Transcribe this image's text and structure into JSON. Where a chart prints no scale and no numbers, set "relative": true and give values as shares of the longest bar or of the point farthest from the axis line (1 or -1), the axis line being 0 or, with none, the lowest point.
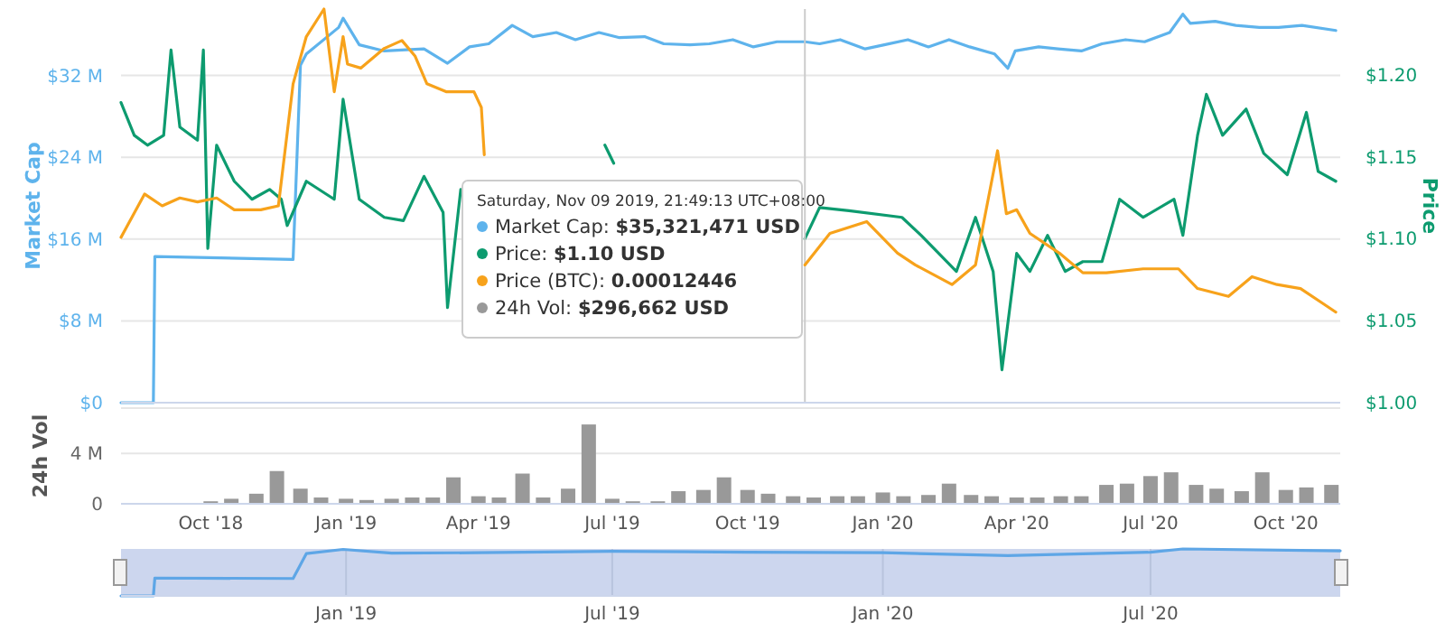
{
  "chart_data": [
    {
      "type": "line",
      "ylabel": "Market Cap",
      "y2label": "Price",
      "xlim": [
        "2018-08-01",
        "2020-11-07"
      ],
      "ylim": [
        0,
        38.5
      ],
      "yticks": [
        {
          "value": 0,
          "label": "$0"
        },
        {
          "value": 8,
          "label": "$8 M"
        },
        {
          "value": 16,
          "label": "$16 M"
        },
        {
          "value": 24,
          "label": "$24 M"
        },
        {
          "value": 32,
          "label": "$32 M"
        }
      ],
      "y2lim": [
        1,
        1.24
      ],
      "y2ticks": [
        {
          "value": 1,
          "label": "$1.00"
        },
        {
          "value": 1.05,
          "label": "$1.05"
        },
        {
          "value": 1.1,
          "label": "$1.10"
        },
        {
          "value": 1.15,
          "label": "$1.15"
        },
        {
          "value": 1.2,
          "label": "$1.20"
        }
      ],
      "grid": "y",
      "tick_labels": "y",
      "ref_lines": [
        {
          "axis": "x",
          "value": "2019-11-09",
          "color": "#cccccc"
        }
      ],
      "annotations": [
        "Saturday, Nov 09 2019, 21:49:13 UTC+08:00",
        "Market Cap: $35,321,471 USD",
        "Price: $1.10 USD",
        "Price (BTC): 0.00012446",
        "24h Vol: $296,662 USD"
      ],
      "series": [
        {
          "color": "#5eb3ec",
          "x": [
            "2018-08-01",
            "2018-08-23",
            "2018-08-24",
            "2018-11-26",
            "2018-12-01",
            "2018-12-05",
            "2018-12-27",
            "2018-12-30",
            "2019-01-10",
            "2019-01-27",
            "2019-02-23",
            "2019-03-11",
            "2019-03-26",
            "2019-04-08",
            "2019-04-24",
            "2019-05-08",
            "2019-05-24",
            "2019-06-06",
            "2019-06-22",
            "2019-07-06",
            "2019-07-23",
            "2019-08-05",
            "2019-08-23",
            "2019-09-05",
            "2019-09-21",
            "2019-10-05",
            "2019-10-21",
            "2019-11-09",
            "2019-11-19",
            "2019-12-03",
            "2019-12-20",
            "2020-01-02",
            "2020-01-18",
            "2020-02-01",
            "2020-02-15",
            "2020-02-29",
            "2020-03-17",
            "2020-03-26",
            "2020-03-31",
            "2020-04-16",
            "2020-04-29",
            "2020-05-15",
            "2020-05-29",
            "2020-06-14",
            "2020-06-27",
            "2020-07-14",
            "2020-07-23",
            "2020-07-28",
            "2020-08-14",
            "2020-08-28",
            "2020-09-13",
            "2020-09-26",
            "2020-10-12",
            "2020-11-04"
          ],
          "values": [
            0,
            0,
            14.3,
            14.0,
            33.0,
            34.1,
            36.7,
            37.6,
            35.0,
            34.4,
            34.6,
            33.2,
            34.8,
            35.1,
            36.9,
            35.8,
            36.2,
            35.5,
            36.2,
            35.7,
            35.8,
            35.1,
            35.0,
            35.1,
            35.5,
            34.8,
            35.3,
            35.3,
            35.1,
            35.5,
            34.6,
            35.0,
            35.5,
            34.8,
            35.5,
            34.8,
            34.1,
            32.7,
            34.4,
            34.8,
            34.6,
            34.4,
            35.1,
            35.5,
            35.3,
            36.2,
            38.0,
            37.1,
            37.3,
            36.9,
            36.7,
            36.7,
            36.9,
            36.4
          ]
        },
        {
          "color": "#0d9b6f",
          "axis": "y2",
          "x": [
            "2018-08-01",
            "2018-08-10",
            "2018-08-19",
            "2018-08-30",
            "2018-09-04",
            "2018-09-10",
            "2018-09-22",
            "2018-09-26",
            "2018-09-29",
            "2018-10-05",
            "2018-10-17",
            "2018-10-29",
            "2018-11-10",
            "2018-11-18",
            "2018-11-22",
            "2018-12-05",
            "2018-12-24",
            "2018-12-30",
            "2019-01-10",
            "2019-01-27",
            "2019-02-09",
            "2019-02-23",
            "2019-03-08",
            "2019-03-11",
            "2019-03-20",
            "2019-04-08",
            "2019-04-23",
            "2019-04-24",
            "2019-05-08",
            "2019-05-24",
            "2019-06-06",
            "2019-06-26",
            "2019-07-02",
            "2019-07-27",
            "2019-08-20",
            "2019-09-14",
            "2019-10-08",
            "2019-11-09",
            "2019-11-19",
            "2019-12-09",
            "2020-01-14",
            "2020-01-27",
            "2020-02-20",
            "2020-03-04",
            "2020-03-16",
            "2020-03-22",
            "2020-04-01",
            "2020-04-10",
            "2020-04-22",
            "2020-05-04",
            "2020-05-16",
            "2020-05-29",
            "2020-06-10",
            "2020-06-26",
            "2020-07-17",
            "2020-07-23",
            "2020-08-02",
            "2020-08-08",
            "2020-08-19",
            "2020-09-04",
            "2020-09-16",
            "2020-10-02",
            "2020-10-15",
            "2020-10-23",
            "2020-11-04"
          ],
          "values": [
            1.183,
            1.163,
            1.157,
            1.163,
            1.215,
            1.168,
            1.16,
            1.215,
            1.094,
            1.157,
            1.135,
            1.124,
            1.13,
            1.124,
            1.108,
            1.135,
            1.124,
            1.185,
            1.124,
            1.113,
            1.111,
            1.138,
            1.116,
            1.058,
            1.13,
            null,
            null,
            null,
            null,
            null,
            null,
            1.157,
            1.146,
            null,
            null,
            null,
            null,
            1.1,
            1.119,
            1.117,
            1.113,
            1.102,
            1.08,
            1.113,
            1.08,
            1.02,
            1.091,
            1.08,
            1.102,
            1.08,
            1.086,
            1.086,
            1.124,
            1.113,
            1.124,
            1.102,
            1.163,
            1.188,
            1.163,
            1.179,
            1.152,
            1.139,
            1.177,
            1.141,
            1.135
          ]
        }
      ]
    },
    {
      "type": "line",
      "relative": true,
      "tick_labels": false,
      "xlim": [
        "2018-08-01",
        "2020-11-07"
      ],
      "series": [
        {
          "color": "#f7a21b",
          "x": [
            "2018-08-01",
            "2018-08-17",
            "2018-08-29",
            "2018-09-10",
            "2018-09-22",
            "2018-10-05",
            "2018-10-17",
            "2018-11-04",
            "2018-11-16",
            "2018-11-26",
            "2018-12-05",
            "2018-12-17",
            "2018-12-24",
            "2018-12-30",
            "2019-01-02",
            "2019-01-11",
            "2019-01-27",
            "2019-02-08",
            "2019-02-17",
            "2019-02-25",
            "2019-03-10",
            "2019-03-29",
            "2019-04-03",
            "2019-04-05",
            "2019-05-02",
            "2019-06-20",
            "2019-08-08",
            "2019-09-26",
            "2019-11-09",
            "2019-11-26",
            "2019-12-21",
            "2020-01-11",
            "2020-01-23",
            "2020-02-17",
            "2020-03-04",
            "2020-03-19",
            "2020-03-25",
            "2020-04-01",
            "2020-04-10",
            "2020-04-30",
            "2020-05-16",
            "2020-06-01",
            "2020-06-26",
            "2020-07-20",
            "2020-08-02",
            "2020-08-23",
            "2020-09-08",
            "2020-09-25",
            "2020-10-11",
            "2020-10-27",
            "2020-11-04"
          ],
          "values": [
            0.42,
            0.53,
            0.5,
            0.52,
            0.51,
            0.52,
            0.49,
            0.49,
            0.5,
            0.81,
            0.93,
            1.0,
            0.79,
            0.93,
            0.86,
            0.85,
            0.9,
            0.92,
            0.88,
            0.81,
            0.79,
            0.79,
            0.75,
            0.63,
            null,
            null,
            null,
            null,
            0.35,
            0.43,
            0.46,
            0.38,
            0.35,
            0.3,
            0.35,
            0.64,
            0.48,
            0.49,
            0.43,
            0.38,
            0.33,
            0.33,
            0.34,
            0.34,
            0.29,
            0.27,
            0.32,
            0.3,
            0.29,
            0.25,
            0.23
          ]
        }
      ]
    },
    {
      "type": "bar",
      "ylabel": "24h Vol",
      "xlim": [
        "2018-08-01",
        "2020-11-07"
      ],
      "ylim": [
        0,
        7.6
      ],
      "yticks": [
        0,
        {
          "value": 4,
          "label": "4 M"
        }
      ],
      "xticks": [
        {
          "value": "2018-10-01",
          "label": "Oct '18"
        },
        {
          "value": "2019-01-01",
          "label": "Jan '19"
        },
        {
          "value": "2019-04-01",
          "label": "Apr '19"
        },
        {
          "value": "2019-07-01",
          "label": "Jul '19"
        },
        {
          "value": "2019-10-01",
          "label": "Oct '19"
        },
        {
          "value": "2020-01-01",
          "label": "Jan '20"
        },
        {
          "value": "2020-04-01",
          "label": "Apr '20"
        },
        {
          "value": "2020-07-01",
          "label": "Jul '20"
        },
        {
          "value": "2020-10-01",
          "label": "Oct '20"
        }
      ],
      "grid": "y",
      "series": [
        {
          "color": "#999999",
          "x": [
            "2018-08-01",
            "2018-08-15",
            "2018-09-01",
            "2018-09-15",
            "2018-10-01",
            "2018-10-15",
            "2018-11-01",
            "2018-11-15",
            "2018-12-01",
            "2018-12-15",
            "2019-01-01",
            "2019-01-15",
            "2019-02-01",
            "2019-02-15",
            "2019-03-01",
            "2019-03-15",
            "2019-04-01",
            "2019-04-15",
            "2019-05-01",
            "2019-05-15",
            "2019-06-01",
            "2019-06-15",
            "2019-07-01",
            "2019-07-15",
            "2019-08-01",
            "2019-08-15",
            "2019-09-01",
            "2019-09-15",
            "2019-10-01",
            "2019-10-15",
            "2019-11-01",
            "2019-11-15",
            "2019-12-01",
            "2019-12-15",
            "2020-01-01",
            "2020-01-15",
            "2020-02-01",
            "2020-02-15",
            "2020-03-01",
            "2020-03-15",
            "2020-04-01",
            "2020-04-15",
            "2020-05-01",
            "2020-05-15",
            "2020-06-01",
            "2020-06-15",
            "2020-07-01",
            "2020-07-15",
            "2020-08-01",
            "2020-08-15",
            "2020-09-01",
            "2020-09-15",
            "2020-10-01",
            "2020-10-15",
            "2020-11-01"
          ],
          "values": [
            0,
            0,
            0,
            0,
            0.2,
            0.4,
            0.8,
            2.6,
            1.2,
            0.5,
            0.4,
            0.3,
            0.4,
            0.5,
            0.5,
            2.1,
            0.6,
            0.5,
            2.4,
            0.5,
            1.2,
            6.3,
            0.4,
            0.2,
            0.2,
            1.0,
            1.1,
            2.1,
            1.1,
            0.8,
            0.6,
            0.5,
            0.6,
            0.6,
            0.9,
            0.6,
            0.7,
            1.6,
            0.7,
            0.6,
            0.5,
            0.5,
            0.6,
            0.6,
            1.5,
            1.6,
            2.2,
            2.5,
            1.5,
            1.2,
            1.0,
            2.5,
            1.1,
            1.3,
            1.5
          ]
        }
      ]
    },
    {
      "type": "line",
      "relative": true,
      "xlim": [
        "2018-08-01",
        "2020-11-07"
      ],
      "xticks": [
        {
          "value": "2019-01-01",
          "label": "Jan '19"
        },
        {
          "value": "2019-07-01",
          "label": "Jul '19"
        },
        {
          "value": "2020-01-01",
          "label": "Jan '20"
        },
        {
          "value": "2020-07-01",
          "label": "Jul '20"
        }
      ],
      "grid": "x",
      "series": [
        {
          "color": "#5ea6e6",
          "x": [
            "2018-08-01",
            "2018-08-23",
            "2018-08-24",
            "2018-11-26",
            "2018-12-05",
            "2018-12-30",
            "2019-02-01",
            "2019-04-01",
            "2019-07-01",
            "2019-10-01",
            "2020-01-01",
            "2020-03-26",
            "2020-07-01",
            "2020-07-23",
            "2020-11-07"
          ],
          "values": [
            0,
            0,
            0.38,
            0.37,
            0.9,
            0.99,
            0.91,
            0.92,
            0.95,
            0.93,
            0.92,
            0.86,
            0.93,
            1.0,
            0.96
          ]
        }
      ]
    }
  ]
}
